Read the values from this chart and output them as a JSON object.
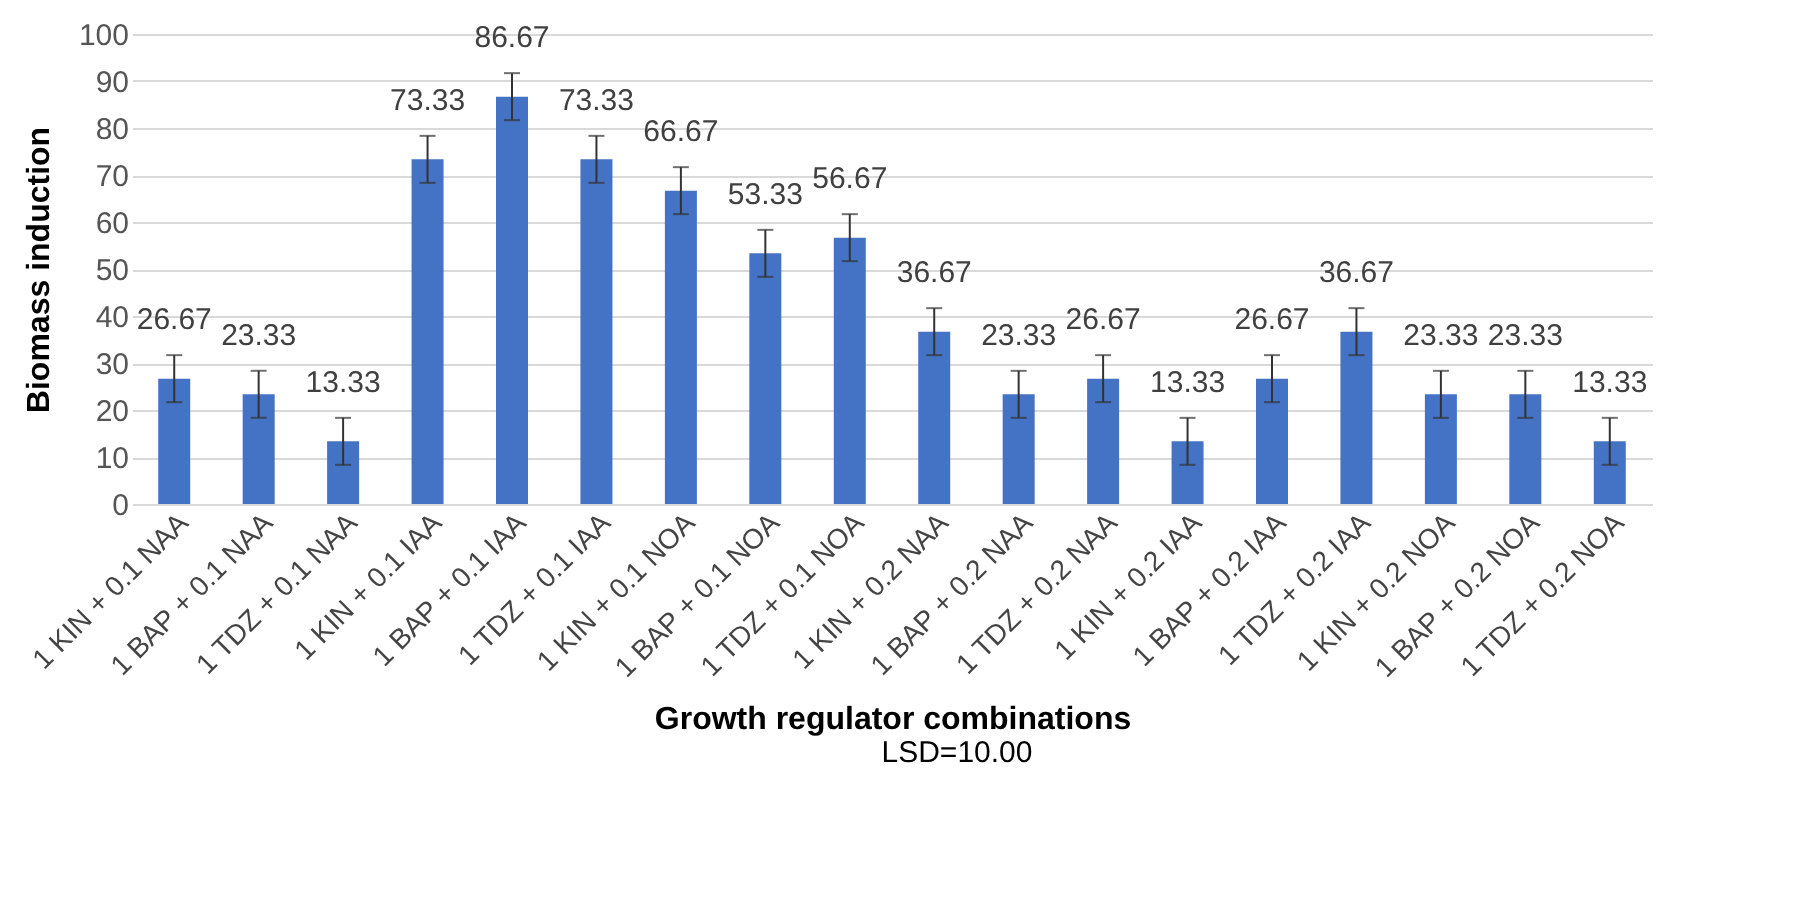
{
  "chart_data": {
    "type": "bar",
    "xlabel": "Growth regulator combinations",
    "ylabel": "Biomass induction",
    "annotations": [
      "LSD=10.00"
    ],
    "categories": [
      "1 KIN + 0.1 NAA",
      "1 BAP + 0.1 NAA",
      "1 TDZ + 0.1 NAA",
      "1 KIN + 0.1 IAA",
      "1 BAP + 0.1 IAA",
      "1 TDZ + 0.1 IAA",
      "1 KIN + 0.1 NOA",
      "1 BAP + 0.1 NOA",
      "1 TDZ + 0.1 NOA",
      "1 KIN + 0.2 NAA",
      "1 BAP + 0.2 NAA",
      "1 TDZ + 0.2 NAA",
      "1 KIN + 0.2 IAA",
      "1 BAP + 0.2 IAA",
      "1 TDZ + 0.2 IAA",
      "1 KIN + 0.2 NOA",
      "1 BAP + 0.2 NOA",
      "1 TDZ + 0.2 NOA"
    ],
    "values": [
      26.67,
      23.33,
      13.33,
      73.33,
      86.67,
      73.33,
      66.67,
      53.33,
      56.67,
      36.67,
      23.33,
      26.67,
      13.33,
      26.67,
      36.67,
      23.33,
      23.33,
      13.33
    ],
    "errors": [
      5,
      5,
      5,
      5,
      5,
      5,
      5,
      5,
      5,
      5,
      5,
      5,
      5,
      5,
      5,
      5,
      5,
      5
    ],
    "color": "#4472c4",
    "data_labels": true,
    "ylim": [
      0,
      100
    ],
    "yticks": [
      0,
      10,
      20,
      30,
      40,
      50,
      60,
      70,
      80,
      90,
      100
    ],
    "grid": "y"
  }
}
